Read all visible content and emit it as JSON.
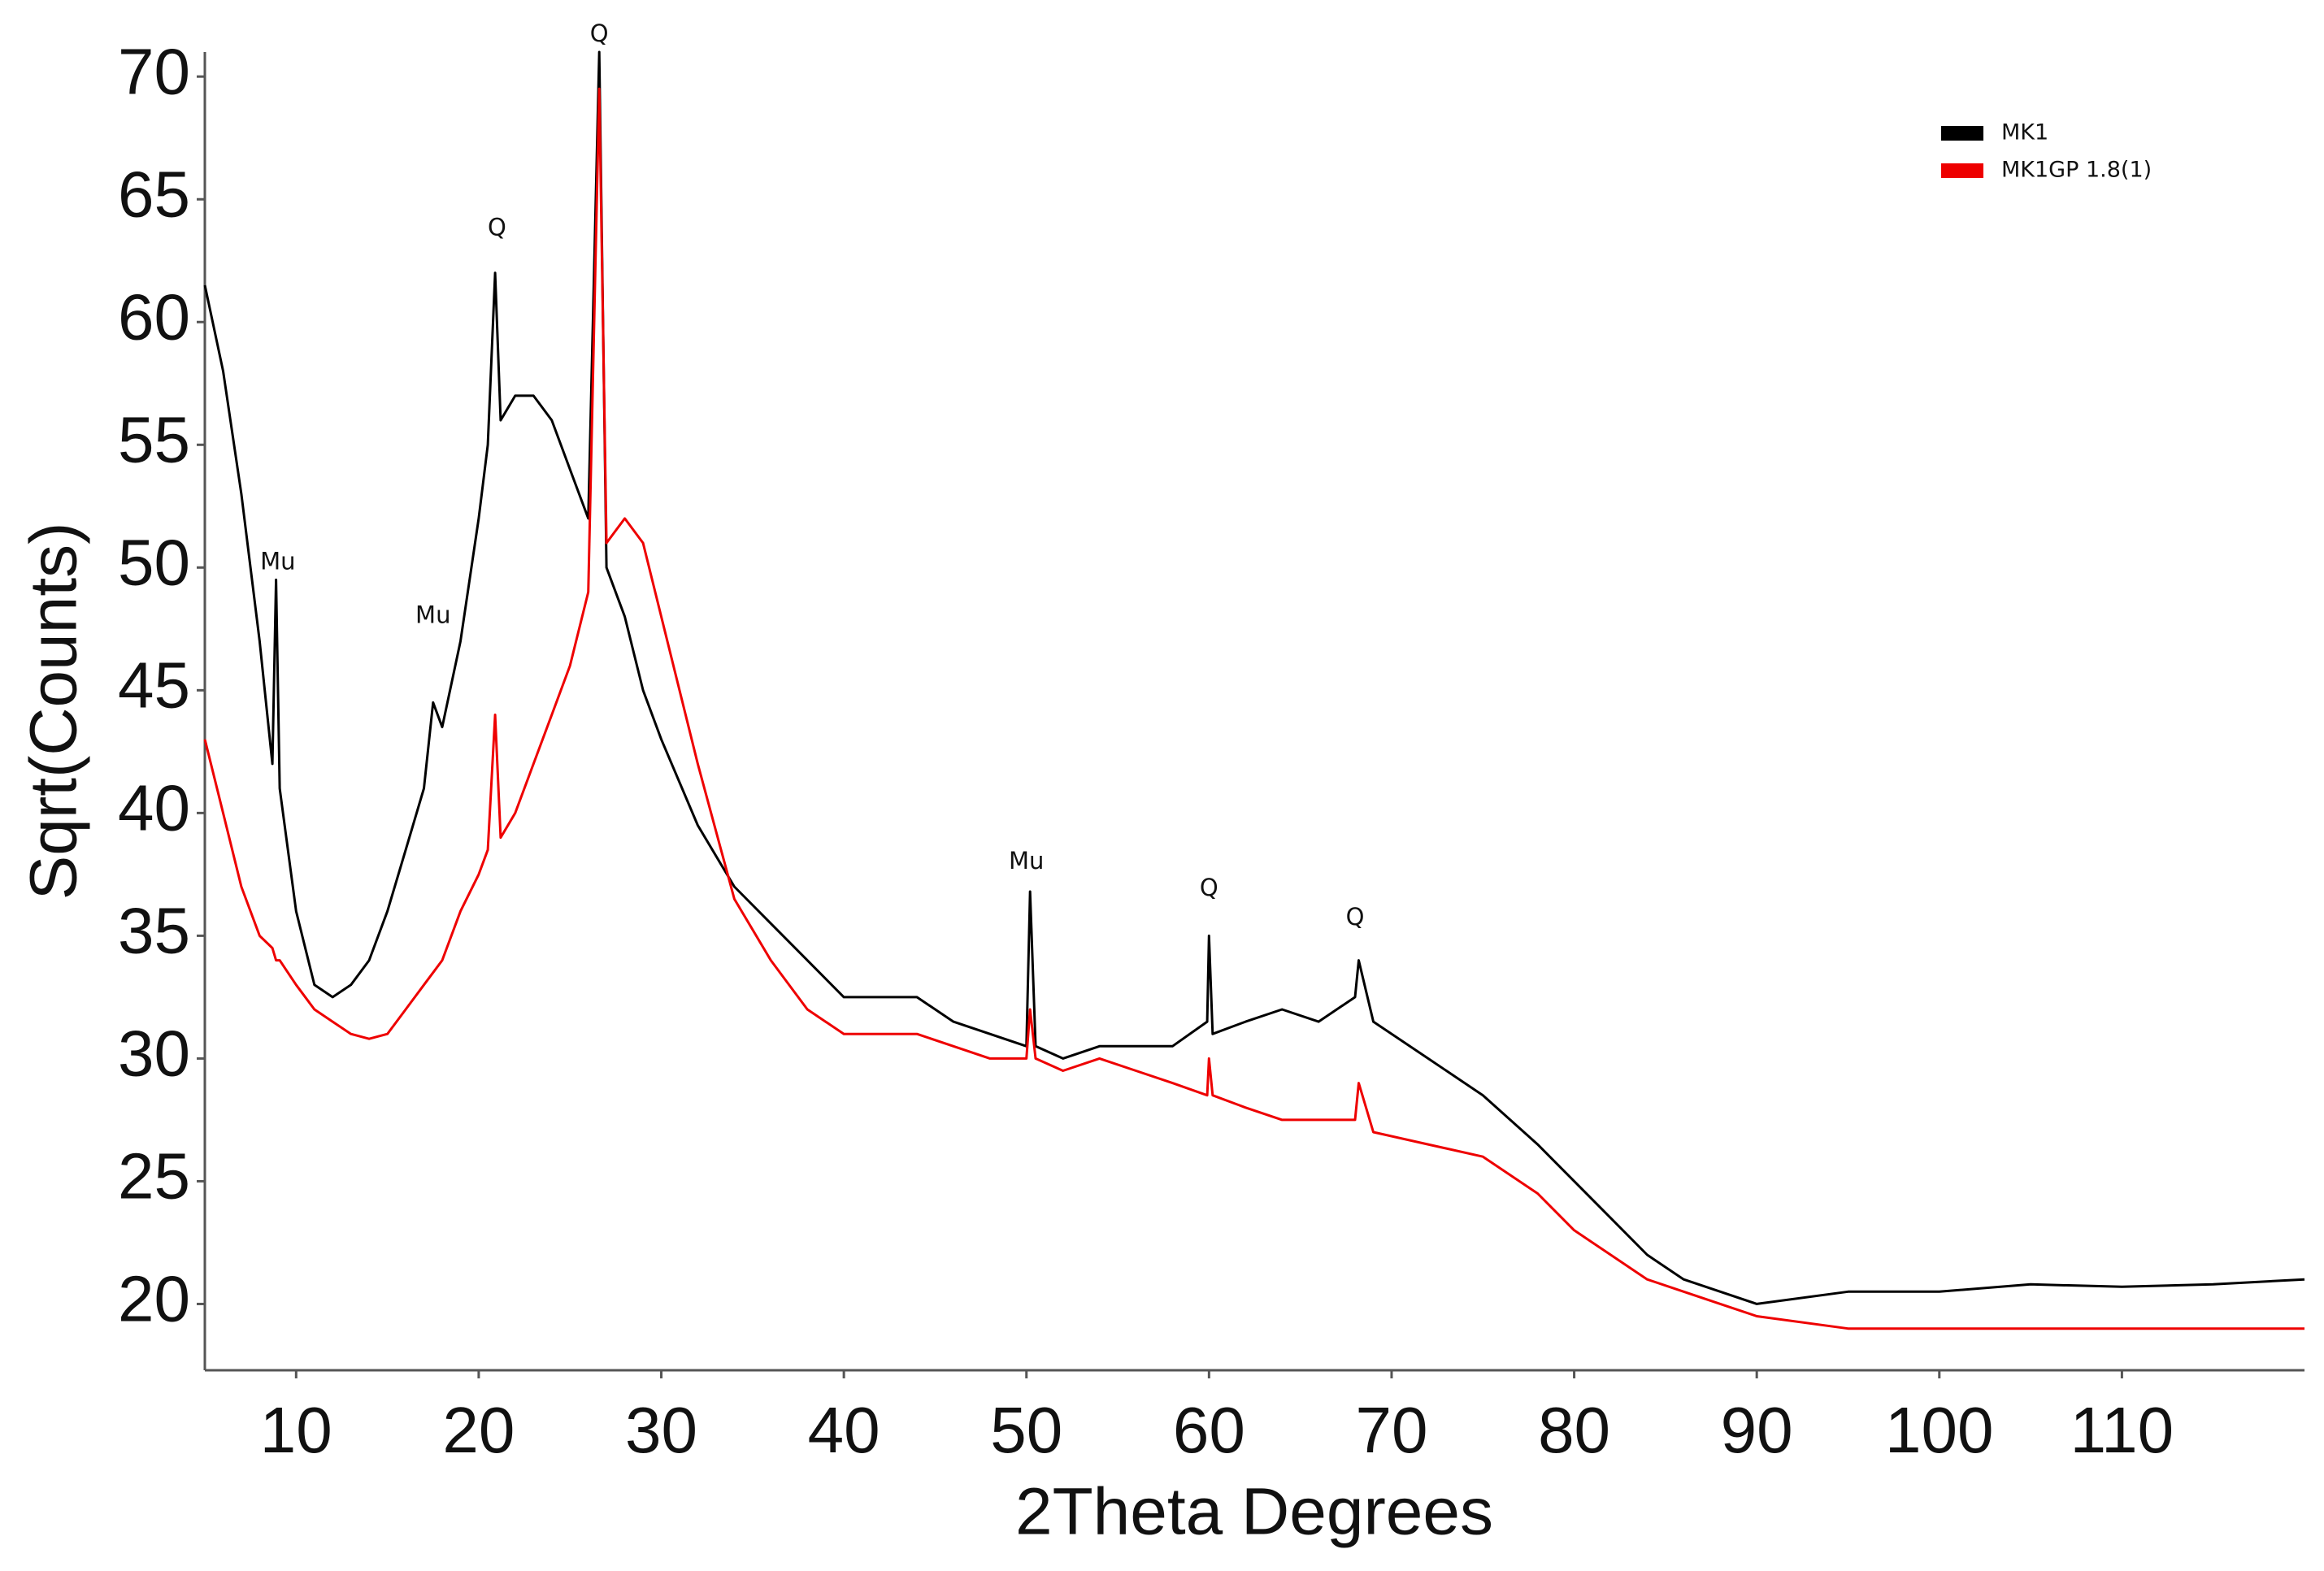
{
  "chart_data": {
    "type": "line",
    "x_label": "2Theta Degrees",
    "y_label": "Sqrt(Counts)",
    "xlim": [
      5,
      120
    ],
    "ylim": [
      17.3,
      71
    ],
    "xticks": [
      10,
      20,
      30,
      40,
      50,
      60,
      70,
      80,
      90,
      100,
      110
    ],
    "yticks": [
      20,
      25,
      30,
      35,
      40,
      45,
      50,
      55,
      60,
      65,
      70
    ],
    "grid": false,
    "legend": "upper right",
    "x": [
      5,
      6,
      7,
      8,
      8.7,
      8.9,
      9.1,
      10,
      11,
      12,
      13,
      14,
      15,
      16,
      17,
      17.5,
      18,
      19,
      20,
      20.5,
      20.9,
      21.2,
      22,
      23,
      24,
      25,
      26,
      26.6,
      27,
      28,
      29,
      30,
      32,
      34,
      36,
      38,
      40,
      42,
      44,
      46,
      48,
      50,
      50.2,
      50.5,
      52,
      54,
      56,
      58,
      59.9,
      60,
      60.2,
      62,
      64,
      66,
      68,
      68.2,
      69,
      72,
      75,
      78,
      80,
      82,
      84,
      86,
      88,
      90,
      95,
      100,
      105,
      110,
      115,
      120
    ],
    "series": [
      {
        "name": "MK1",
        "color": "#000000",
        "values": [
          61.5,
          58,
          53,
          47,
          42,
          49.5,
          41,
          36,
          33,
          32.5,
          33,
          34,
          36,
          38.5,
          41,
          44.5,
          43.5,
          47,
          52,
          55,
          62,
          56,
          57,
          57,
          56,
          54,
          52,
          71,
          50,
          48,
          45,
          43,
          39.5,
          37,
          35.5,
          34,
          32.5,
          32.5,
          32.5,
          31.5,
          31,
          30.5,
          36.8,
          30.5,
          30,
          30.5,
          30.5,
          30.5,
          31.5,
          35,
          31,
          31.5,
          32,
          31.5,
          32.5,
          34,
          31.5,
          30,
          28.5,
          26.5,
          25,
          23.5,
          22,
          21,
          20.5,
          20,
          20.5,
          20.5,
          20.8,
          20.7,
          20.8,
          21
        ]
      },
      {
        "name": "MK1GP 1.8(1)",
        "color": "#ee0000",
        "values": [
          43,
          40,
          37,
          35,
          34.5,
          34,
          34,
          33,
          32,
          31.5,
          31,
          30.8,
          31,
          32,
          33,
          33.5,
          34,
          36,
          37.5,
          38.5,
          44,
          39,
          40,
          42,
          44,
          46,
          49,
          69.5,
          51,
          52,
          51,
          48,
          42,
          36.5,
          34,
          32,
          31,
          31,
          31,
          30.5,
          30,
          30,
          32,
          30,
          29.5,
          30,
          29.5,
          29,
          28.5,
          30,
          28.5,
          28,
          27.5,
          27.5,
          27.5,
          29,
          27,
          26.5,
          26,
          24.5,
          23,
          22,
          21,
          20.5,
          20,
          19.5,
          19,
          19,
          19,
          19,
          19,
          19
        ]
      }
    ],
    "annotations": [
      {
        "text": "Mu",
        "x": 9,
        "y": 50.2
      },
      {
        "text": "Mu",
        "x": 17.5,
        "y": 48
      },
      {
        "text": "Q",
        "x": 21,
        "y": 63.8
      },
      {
        "text": "Q",
        "x": 26.6,
        "y": 71.7
      },
      {
        "text": "Mu",
        "x": 50,
        "y": 38
      },
      {
        "text": "Q",
        "x": 60,
        "y": 36.9
      },
      {
        "text": "Q",
        "x": 68,
        "y": 35.7
      }
    ]
  }
}
